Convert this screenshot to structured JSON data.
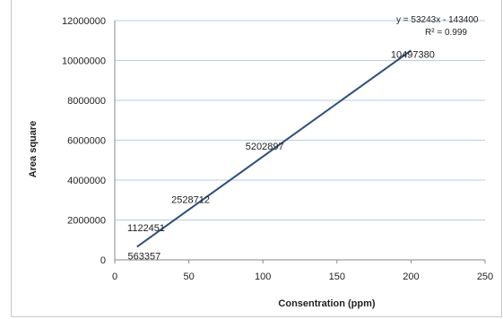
{
  "chart_data": {
    "type": "scatter",
    "title": "",
    "xlabel": "Consentration (ppm)",
    "ylabel": "Area square",
    "xlim": [
      0,
      250
    ],
    "ylim": [
      0,
      12000000
    ],
    "x_ticks": [
      "0",
      "50",
      "100",
      "150",
      "200",
      "250"
    ],
    "y_ticks": [
      "0",
      "2000000",
      "4000000",
      "6000000",
      "8000000",
      "10000000",
      "12000000"
    ],
    "grid": "horizontal",
    "series": [
      {
        "points": [
          {
            "x": 10,
            "y": 563357,
            "label": "563357"
          },
          {
            "x": 20,
            "y": 1122451,
            "label": "1122451"
          },
          {
            "x": 50,
            "y": 2528712,
            "label": "2528712"
          },
          {
            "x": 100,
            "y": 5202897,
            "label": "5202897"
          },
          {
            "x": 200,
            "y": 10497380,
            "label": "10497380"
          }
        ]
      }
    ],
    "trendline": {
      "equation": "y = 53243x - 143400",
      "r_squared": "R² = 0.999",
      "x_range": [
        15,
        200
      ],
      "color": "#2f4f7a"
    },
    "grid_color": "#b8cce4"
  }
}
